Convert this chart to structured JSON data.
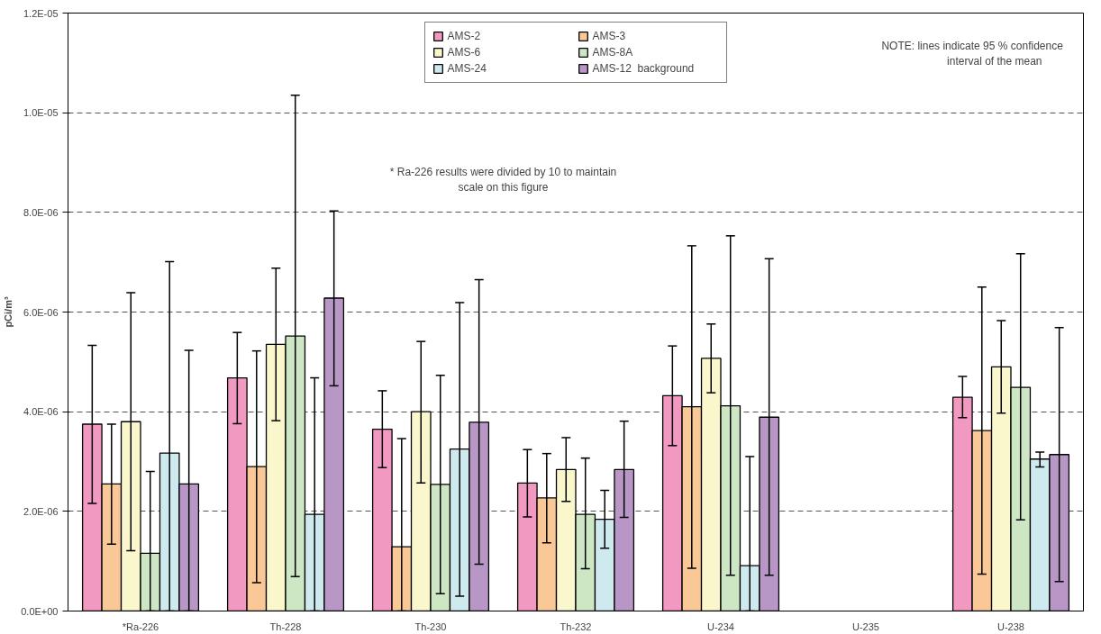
{
  "chart_data": {
    "type": "bar",
    "ylabel": "pCi/m³",
    "categories": [
      "*Ra-226",
      "Th-228",
      "Th-230",
      "Th-232",
      "U-234",
      "U-235",
      "U-238"
    ],
    "series": [
      {
        "name": "AMS-2",
        "color": "#f199c0",
        "values": [
          3.75e-06,
          4.68e-06,
          3.65e-06,
          2.57e-06,
          4.32e-06,
          null,
          4.29e-06
        ],
        "errors": [
          [
            2.16e-06,
            5.33e-06
          ],
          [
            3.76e-06,
            5.59e-06
          ],
          [
            2.88e-06,
            4.42e-06
          ],
          [
            1.89e-06,
            3.24e-06
          ],
          [
            3.32e-06,
            5.32e-06
          ],
          null,
          [
            3.88e-06,
            4.71e-06
          ]
        ]
      },
      {
        "name": "AMS-3",
        "color": "#f9c896",
        "values": [
          2.55e-06,
          2.9e-06,
          1.29e-06,
          2.27e-06,
          4.1e-06,
          null,
          3.62e-06
        ],
        "errors": [
          [
            1.34e-06,
            3.75e-06
          ],
          [
            5.7e-07,
            5.22e-06
          ],
          [
            0,
            3.46e-06
          ],
          [
            1.37e-06,
            3.16e-06
          ],
          [
            8.6e-07,
            7.33e-06
          ],
          null,
          [
            7.4e-07,
            6.5e-06
          ]
        ]
      },
      {
        "name": "AMS-6",
        "color": "#fbf7cc",
        "values": [
          3.8e-06,
          5.35e-06,
          4e-06,
          2.84e-06,
          5.07e-06,
          null,
          4.9e-06
        ],
        "errors": [
          [
            1.21e-06,
            6.39e-06
          ],
          [
            3.82e-06,
            6.88e-06
          ],
          [
            2.57e-06,
            5.41e-06
          ],
          [
            2.2e-06,
            3.48e-06
          ],
          [
            4.38e-06,
            5.76e-06
          ],
          null,
          [
            3.97e-06,
            5.83e-06
          ]
        ]
      },
      {
        "name": "AMS-8A",
        "color": "#cde6c4",
        "values": [
          1.16e-06,
          5.52e-06,
          2.54e-06,
          1.94e-06,
          4.12e-06,
          null,
          4.49e-06
        ],
        "errors": [
          [
            0,
            2.8e-06
          ],
          [
            6.9e-07,
            1.035e-05
          ],
          [
            3.5e-07,
            4.73e-06
          ],
          [
            8.5e-07,
            3.07e-06
          ],
          [
            7.2e-07,
            7.53e-06
          ],
          null,
          [
            1.83e-06,
            7.17e-06
          ]
        ]
      },
      {
        "name": "AMS-24",
        "color": "#cfeaee",
        "values": [
          3.17e-06,
          1.94e-06,
          3.25e-06,
          1.84e-06,
          9.1e-07,
          null,
          3.05e-06
        ],
        "errors": [
          [
            0,
            7.01e-06
          ],
          [
            0,
            4.68e-06
          ],
          [
            3e-07,
            6.19e-06
          ],
          [
            1.26e-06,
            2.42e-06
          ],
          [
            0,
            3.1e-06
          ],
          null,
          [
            2.89e-06,
            3.19e-06
          ]
        ]
      },
      {
        "name": "AMS-12  background",
        "color": "#b897c7",
        "values": [
          2.55e-06,
          6.28e-06,
          3.79e-06,
          2.84e-06,
          3.89e-06,
          null,
          3.14e-06
        ],
        "errors": [
          [
            0,
            5.23e-06
          ],
          [
            4.52e-06,
            8.03e-06
          ],
          [
            9.4e-07,
            6.65e-06
          ],
          [
            1.88e-06,
            3.81e-06
          ],
          [
            7.2e-07,
            7.07e-06
          ],
          null,
          [
            5.9e-07,
            5.69e-06
          ]
        ]
      }
    ],
    "ylim": [
      0,
      1.2e-05
    ],
    "yticks": [
      {
        "value": 0,
        "label": "0.0E+00"
      },
      {
        "value": 2e-06,
        "label": "2.0E-06"
      },
      {
        "value": 4e-06,
        "label": "4.0E-06"
      },
      {
        "value": 6e-06,
        "label": "6.0E-06"
      },
      {
        "value": 8e-06,
        "label": "8.0E-06"
      },
      {
        "value": 1e-05,
        "label": "1.0E-05"
      },
      {
        "value": 1.2e-05,
        "label": "1.2E-05"
      }
    ],
    "grid": "y",
    "legend": "top",
    "annotations": [
      "NOTE:  lines indicate 95 % confidence\n        interval of the mean",
      "* Ra-226 results were divided by 10 to maintain\nscale on this figure"
    ]
  }
}
